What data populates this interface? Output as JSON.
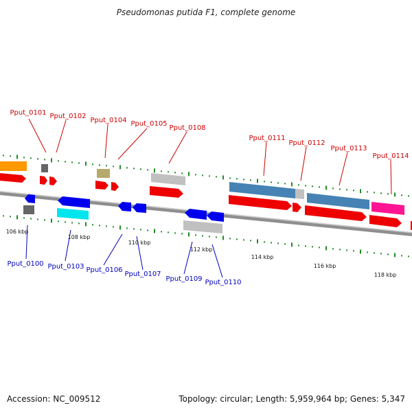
{
  "title": "Pseudomonas putida F1, complete genome",
  "footer": {
    "accession": "Accession: NC_009512",
    "summary": "Topology: circular; Length: 5,959,964 bp; Genes: 5,347"
  },
  "colors": {
    "forward_gene": "#ff0000",
    "reverse_gene": "#0000ff",
    "top_labels": "#cc0000",
    "bottom_labels": "#0000bb",
    "backbone": "#999999",
    "ticks": "#228b22"
  },
  "axis": {
    "tick_labels": [
      "106 kbp",
      "108 kbp",
      "110 kbp",
      "112 kbp",
      "114 kbp",
      "116 kbp",
      "118 kbp"
    ]
  },
  "top_genes": [
    "Pput_0101",
    "Pput_0102",
    "Pput_0104",
    "Pput_0105",
    "Pput_0108",
    "Pput_0111",
    "Pput_0112",
    "Pput_0113",
    "Pput_0114"
  ],
  "bottom_genes": [
    "Pput_0100",
    "Pput_0103",
    "Pput_0106",
    "Pput_0107",
    "Pput_0109",
    "Pput_0110"
  ]
}
